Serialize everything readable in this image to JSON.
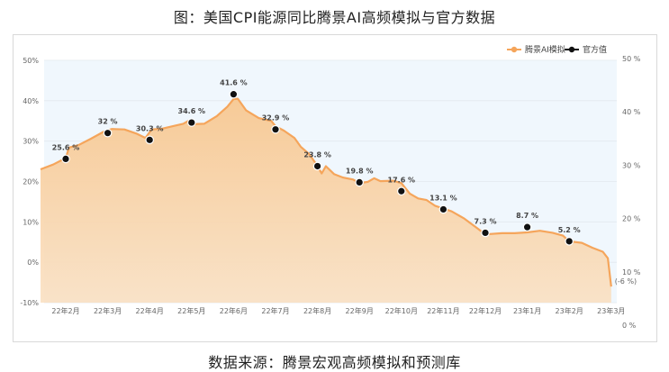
{
  "title": "图：美国CPI能源同比腾景AI高频模拟与官方数据",
  "footer": "数据来源：腾景宏观高频模拟和预测库",
  "colors": {
    "model_line": "#f5a55b",
    "model_fill": "#f8d3a9",
    "plot_bg": "#f0f7fd",
    "official": "#111111",
    "last_label": "#2a6fd6"
  },
  "chart_data": {
    "type": "area",
    "x": [
      "22年2月",
      "22年3月",
      "22年4月",
      "22年5月",
      "22年6月",
      "22年7月",
      "22年8月",
      "22年9月",
      "22年10月",
      "22年11月",
      "22年12月",
      "23年1月",
      "23年2月",
      "23年3月"
    ],
    "y_left_ticks": [
      "50%",
      "40%",
      "30%",
      "20%",
      "10%",
      "0%",
      "-10%"
    ],
    "y_right_ticks": [
      "50 %",
      "40 %",
      "30 %",
      "20 %",
      "10 %",
      "0 %"
    ],
    "ylim": [
      -10,
      50
    ],
    "legend_position": "top-right",
    "series": [
      {
        "name": "腾景AI模拟",
        "kind": "area",
        "points": [
          [
            -0.6,
            23.0
          ],
          [
            -0.3,
            24.2
          ],
          [
            0,
            25.8
          ],
          [
            0.08,
            28.4
          ],
          [
            0.3,
            29.0
          ],
          [
            0.6,
            30.6
          ],
          [
            0.9,
            32.3
          ],
          [
            1.1,
            33.0
          ],
          [
            1.4,
            32.9
          ],
          [
            1.7,
            31.8
          ],
          [
            1.9,
            30.8
          ],
          [
            2.05,
            32.9
          ],
          [
            2.3,
            33.1
          ],
          [
            2.6,
            33.8
          ],
          [
            2.8,
            34.3
          ],
          [
            2.95,
            35.2
          ],
          [
            3.05,
            34.2
          ],
          [
            3.3,
            34.3
          ],
          [
            3.6,
            36.2
          ],
          [
            3.85,
            38.5
          ],
          [
            4.0,
            40.4
          ],
          [
            4.1,
            40.5
          ],
          [
            4.3,
            37.6
          ],
          [
            4.6,
            35.7
          ],
          [
            4.9,
            35.0
          ],
          [
            5.0,
            33.7
          ],
          [
            5.2,
            32.6
          ],
          [
            5.45,
            30.8
          ],
          [
            5.6,
            28.6
          ],
          [
            5.8,
            26.8
          ],
          [
            5.95,
            24.6
          ],
          [
            6.1,
            22.0
          ],
          [
            6.2,
            23.8
          ],
          [
            6.4,
            21.8
          ],
          [
            6.6,
            21.0
          ],
          [
            6.85,
            20.5
          ],
          [
            7.0,
            19.6
          ],
          [
            7.2,
            19.9
          ],
          [
            7.35,
            20.8
          ],
          [
            7.5,
            20.1
          ],
          [
            7.8,
            20.2
          ],
          [
            8.0,
            19.6
          ],
          [
            8.2,
            17.0
          ],
          [
            8.4,
            15.8
          ],
          [
            8.6,
            15.4
          ],
          [
            8.8,
            14.0
          ],
          [
            9.0,
            13.3
          ],
          [
            9.2,
            12.6
          ],
          [
            9.5,
            10.8
          ],
          [
            9.8,
            8.5
          ],
          [
            10.0,
            6.9
          ],
          [
            10.4,
            7.2
          ],
          [
            10.7,
            7.2
          ],
          [
            11.0,
            7.4
          ],
          [
            11.3,
            7.8
          ],
          [
            11.6,
            7.3
          ],
          [
            11.85,
            6.6
          ],
          [
            12.0,
            5.2
          ],
          [
            12.3,
            4.8
          ],
          [
            12.55,
            3.6
          ],
          [
            12.8,
            2.6
          ],
          [
            12.92,
            1.0
          ],
          [
            13.0,
            -6.0
          ]
        ],
        "end_label": "(-6 %)"
      },
      {
        "name": "官方值",
        "kind": "scatter",
        "values": [
          25.6,
          32,
          30.3,
          34.6,
          41.6,
          32.9,
          23.8,
          19.8,
          17.6,
          13.1,
          7.3,
          8.7,
          5.2
        ],
        "labels": [
          "25.6 %",
          "32 %",
          "30.3 %",
          "34.6 %",
          "41.6 %",
          "32.9 %",
          "23.8 %",
          "19.8 %",
          "17.6 %",
          "13.1 %",
          "7.3 %",
          "8.7 %",
          "5.2 %"
        ]
      }
    ]
  }
}
